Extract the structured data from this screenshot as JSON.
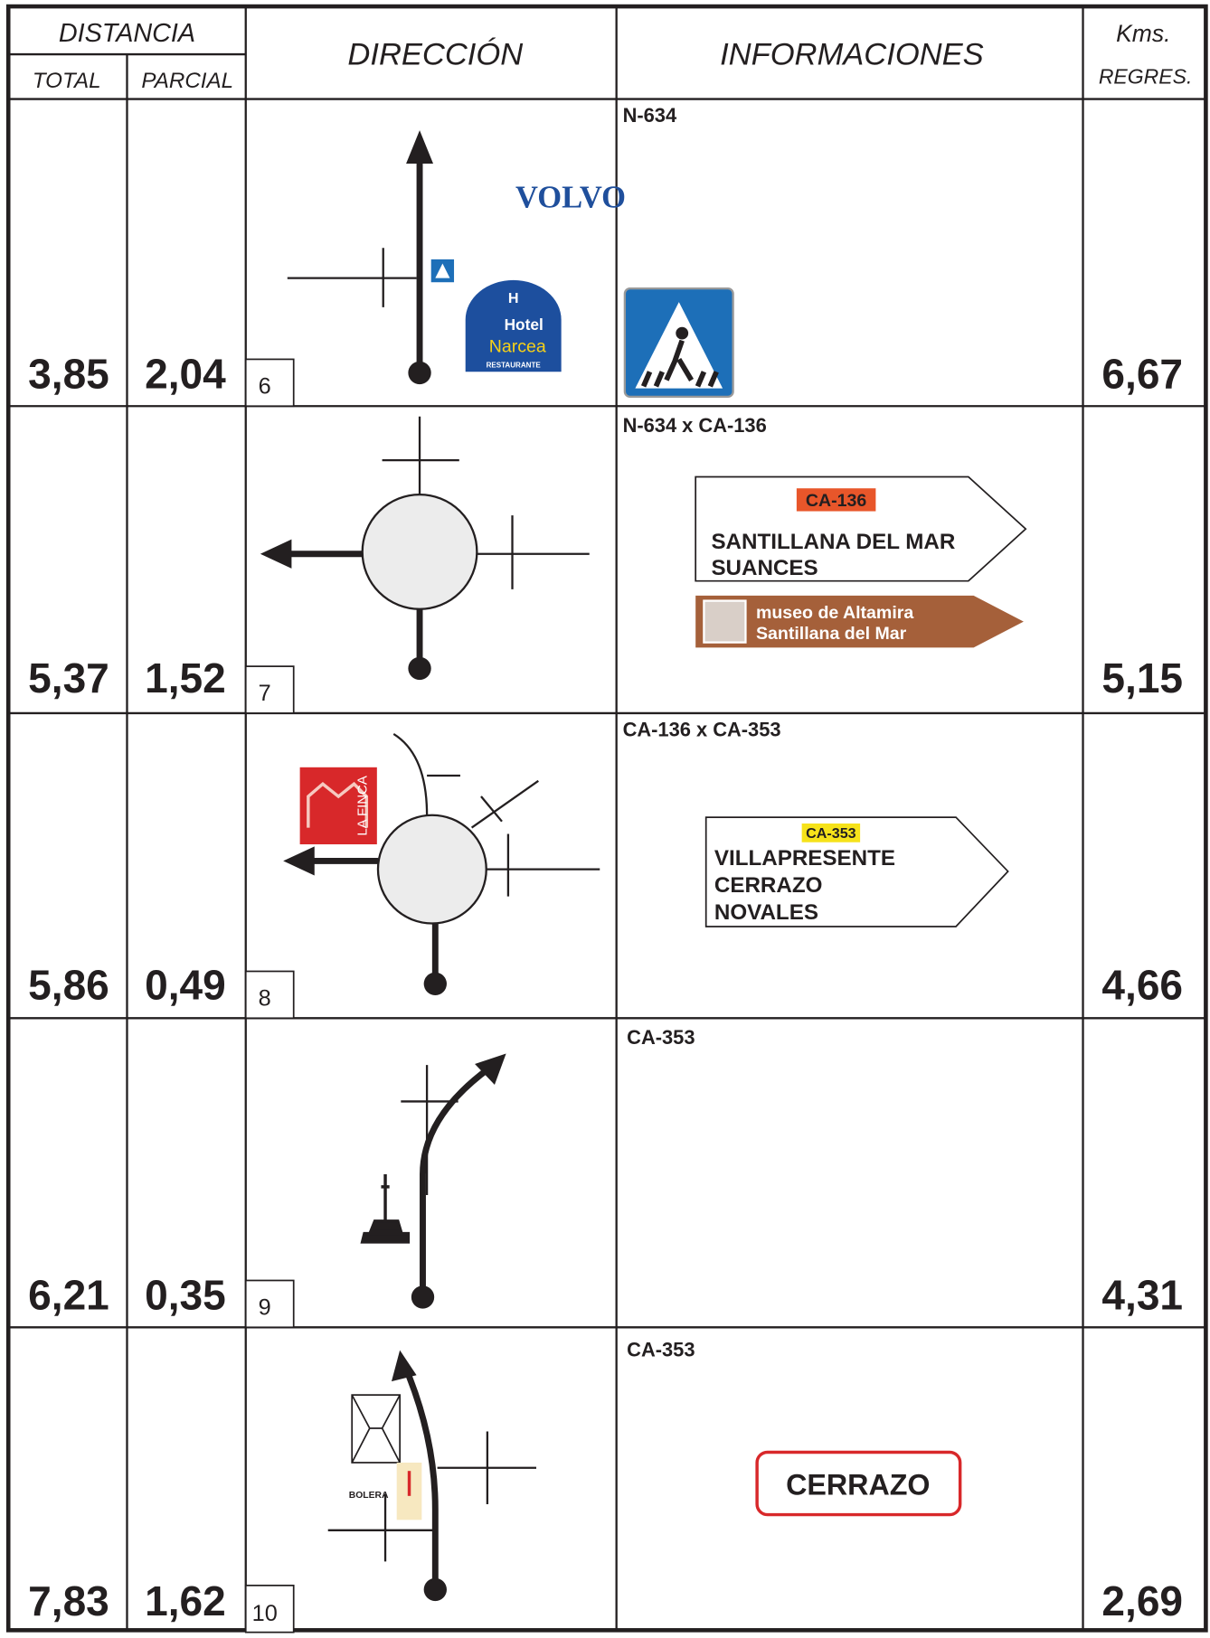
{
  "header": {
    "distance": "DISTANCIA",
    "total": "TOTAL",
    "partial": "PARCIAL",
    "direction": "DIRECCIÓN",
    "info": "INFORMACIONES",
    "kms": "Kms.",
    "regres": "REGRES."
  },
  "rows": [
    {
      "total": "3,85",
      "partial": "2,04",
      "step": "6",
      "road": "N-634",
      "kms": "6,67",
      "brand": "VOLVO",
      "hotel": {
        "initial": "H",
        "word": "Hotel",
        "name": "Narcea",
        "sub": "RESTAURANTE"
      }
    },
    {
      "total": "5,37",
      "partial": "1,52",
      "step": "7",
      "road": "N-634 x CA-136",
      "kms": "5,15",
      "sign": {
        "code": "CA-136",
        "lines": [
          "SANTILLANA DEL MAR",
          "SUANCES"
        ]
      },
      "tourist": [
        "museo de Altamira",
        "Santillana del Mar"
      ]
    },
    {
      "total": "5,86",
      "partial": "0,49",
      "step": "8",
      "road": "CA-136 x CA-353",
      "kms": "4,66",
      "logo": "LA FINCA",
      "sign": {
        "code": "CA-353",
        "lines": [
          "VILLAPRESENTE",
          "CERRAZO",
          "NOVALES"
        ]
      }
    },
    {
      "total": "6,21",
      "partial": "0,35",
      "step": "9",
      "road": "CA-353",
      "kms": "4,31"
    },
    {
      "total": "7,83",
      "partial": "1,62",
      "step": "10",
      "road": "CA-353",
      "kms": "2,69",
      "place": "BOLERA",
      "town": "CERRAZO"
    }
  ]
}
